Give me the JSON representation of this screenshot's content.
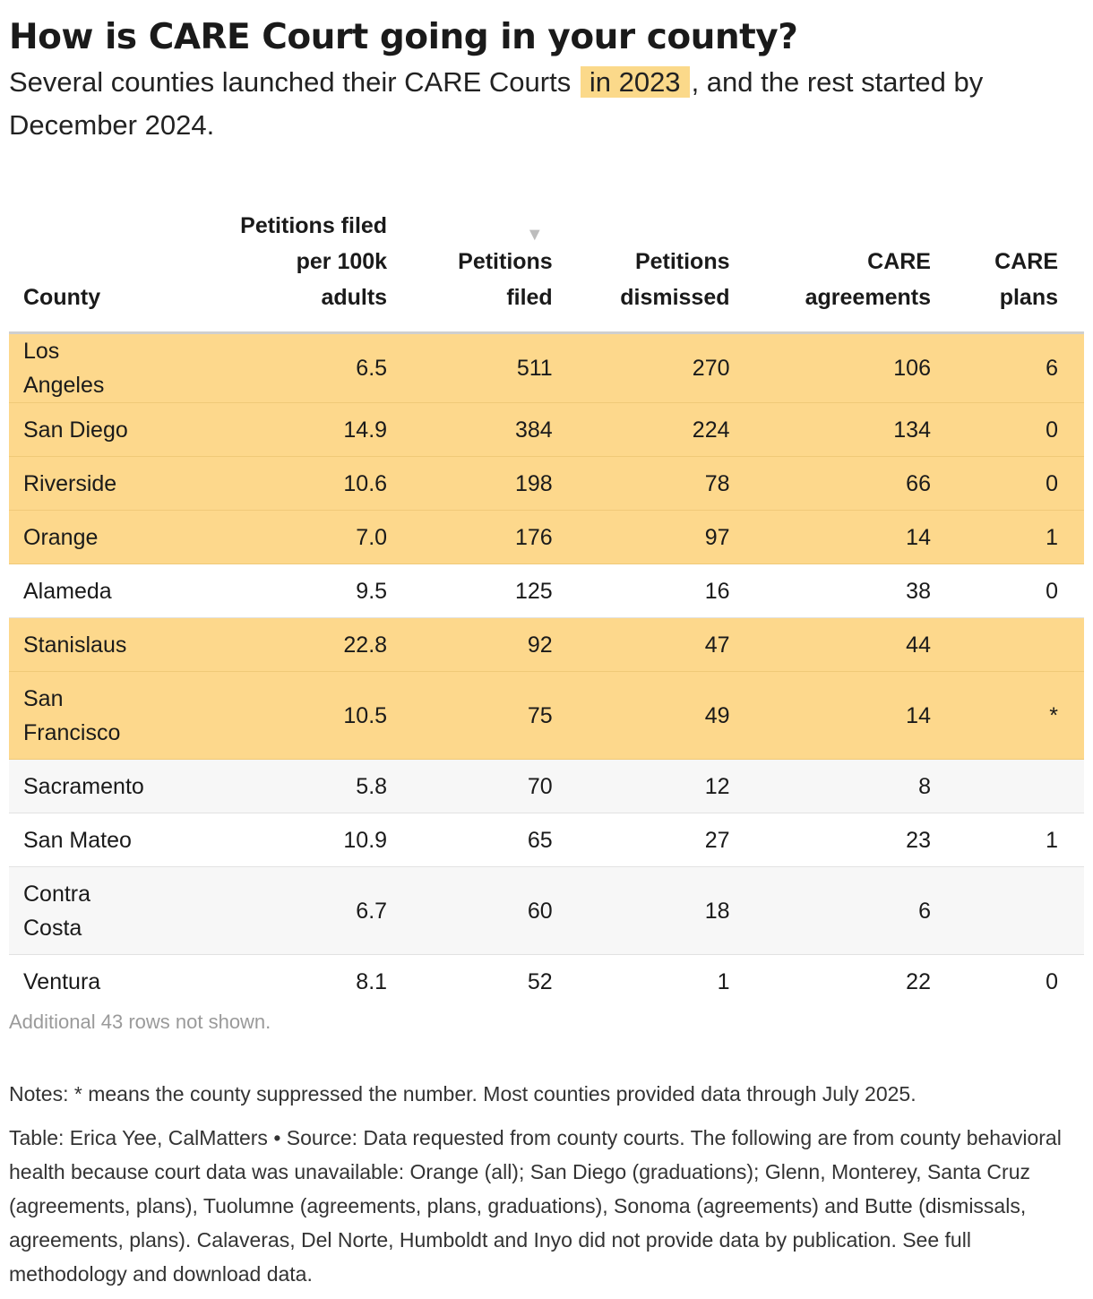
{
  "header": {
    "title": "How is CARE Court going in your county?",
    "subtitle_pre": "Several counties launched their CARE Courts",
    "subtitle_highlight": "in 2023",
    "subtitle_post": ", and the rest started by December 2024."
  },
  "colors": {
    "highlight": "#fbd98a",
    "alt_row": "#f7f7f7",
    "sort_icon": "#bdbdbd"
  },
  "sort_icon_name": "sort-descending-icon",
  "chart_data": {
    "type": "table",
    "columns": [
      "County",
      "Petitions filed per 100k adults",
      "Petitions filed",
      "Petitions dismissed",
      "CARE agreements",
      "CARE plans"
    ],
    "rows": [
      {
        "county": "Los Angeles",
        "per100k": "6.5",
        "filed": "511",
        "dismissed": "270",
        "agreements": "106",
        "plans": "6",
        "launched_2023": true
      },
      {
        "county": "San Diego",
        "per100k": "14.9",
        "filed": "384",
        "dismissed": "224",
        "agreements": "134",
        "plans": "0",
        "launched_2023": true
      },
      {
        "county": "Riverside",
        "per100k": "10.6",
        "filed": "198",
        "dismissed": "78",
        "agreements": "66",
        "plans": "0",
        "launched_2023": true
      },
      {
        "county": "Orange",
        "per100k": "7.0",
        "filed": "176",
        "dismissed": "97",
        "agreements": "14",
        "plans": "1",
        "launched_2023": true
      },
      {
        "county": "Alameda",
        "per100k": "9.5",
        "filed": "125",
        "dismissed": "16",
        "agreements": "38",
        "plans": "0",
        "launched_2023": false
      },
      {
        "county": "Stanislaus",
        "per100k": "22.8",
        "filed": "92",
        "dismissed": "47",
        "agreements": "44",
        "plans": "",
        "launched_2023": true
      },
      {
        "county": "San Francisco",
        "per100k": "10.5",
        "filed": "75",
        "dismissed": "49",
        "agreements": "14",
        "plans": "*",
        "launched_2023": true
      },
      {
        "county": "Sacramento",
        "per100k": "5.8",
        "filed": "70",
        "dismissed": "12",
        "agreements": "8",
        "plans": "",
        "launched_2023": false
      },
      {
        "county": "San Mateo",
        "per100k": "10.9",
        "filed": "65",
        "dismissed": "27",
        "agreements": "23",
        "plans": "1",
        "launched_2023": false
      },
      {
        "county": "Contra Costa",
        "per100k": "6.7",
        "filed": "60",
        "dismissed": "18",
        "agreements": "6",
        "plans": "",
        "launched_2023": false
      },
      {
        "county": "Ventura",
        "per100k": "8.1",
        "filed": "52",
        "dismissed": "1",
        "agreements": "22",
        "plans": "0",
        "launched_2023": false
      }
    ],
    "sorted_by": "Petitions filed",
    "sort_direction": "descending"
  },
  "table": {
    "headers": {
      "county": "County",
      "per100k_l1": "Petitions filed",
      "per100k_l2": "per 100k",
      "per100k_l3": "adults",
      "filed_l1": "Petitions",
      "filed_l2": "filed",
      "dismissed_l1": "Petitions",
      "dismissed_l2": "dismissed",
      "agreements_l1": "CARE",
      "agreements_l2": "agreements",
      "plans_l1": "CARE",
      "plans_l2": "plans"
    },
    "sort_glyph": "▼"
  },
  "footer": {
    "more_rows": "Additional 43 rows not shown.",
    "notes": "Notes: * means the county suppressed the number. Most counties provided data through July 2025.",
    "source": "Table: Erica Yee, CalMatters • Source: Data requested from county courts. The following are from county behavioral health because court data was unavailable: Orange (all); San Diego (graduations); Glenn, Monterey, Santa Cruz (agreements, plans), Tuolumne (agreements, plans, graduations), Sonoma (agreements) and Butte (dismissals, agreements, plans). Calaveras, Del Norte, Humboldt and Inyo did not provide data by publication. See full methodology and download data."
  }
}
